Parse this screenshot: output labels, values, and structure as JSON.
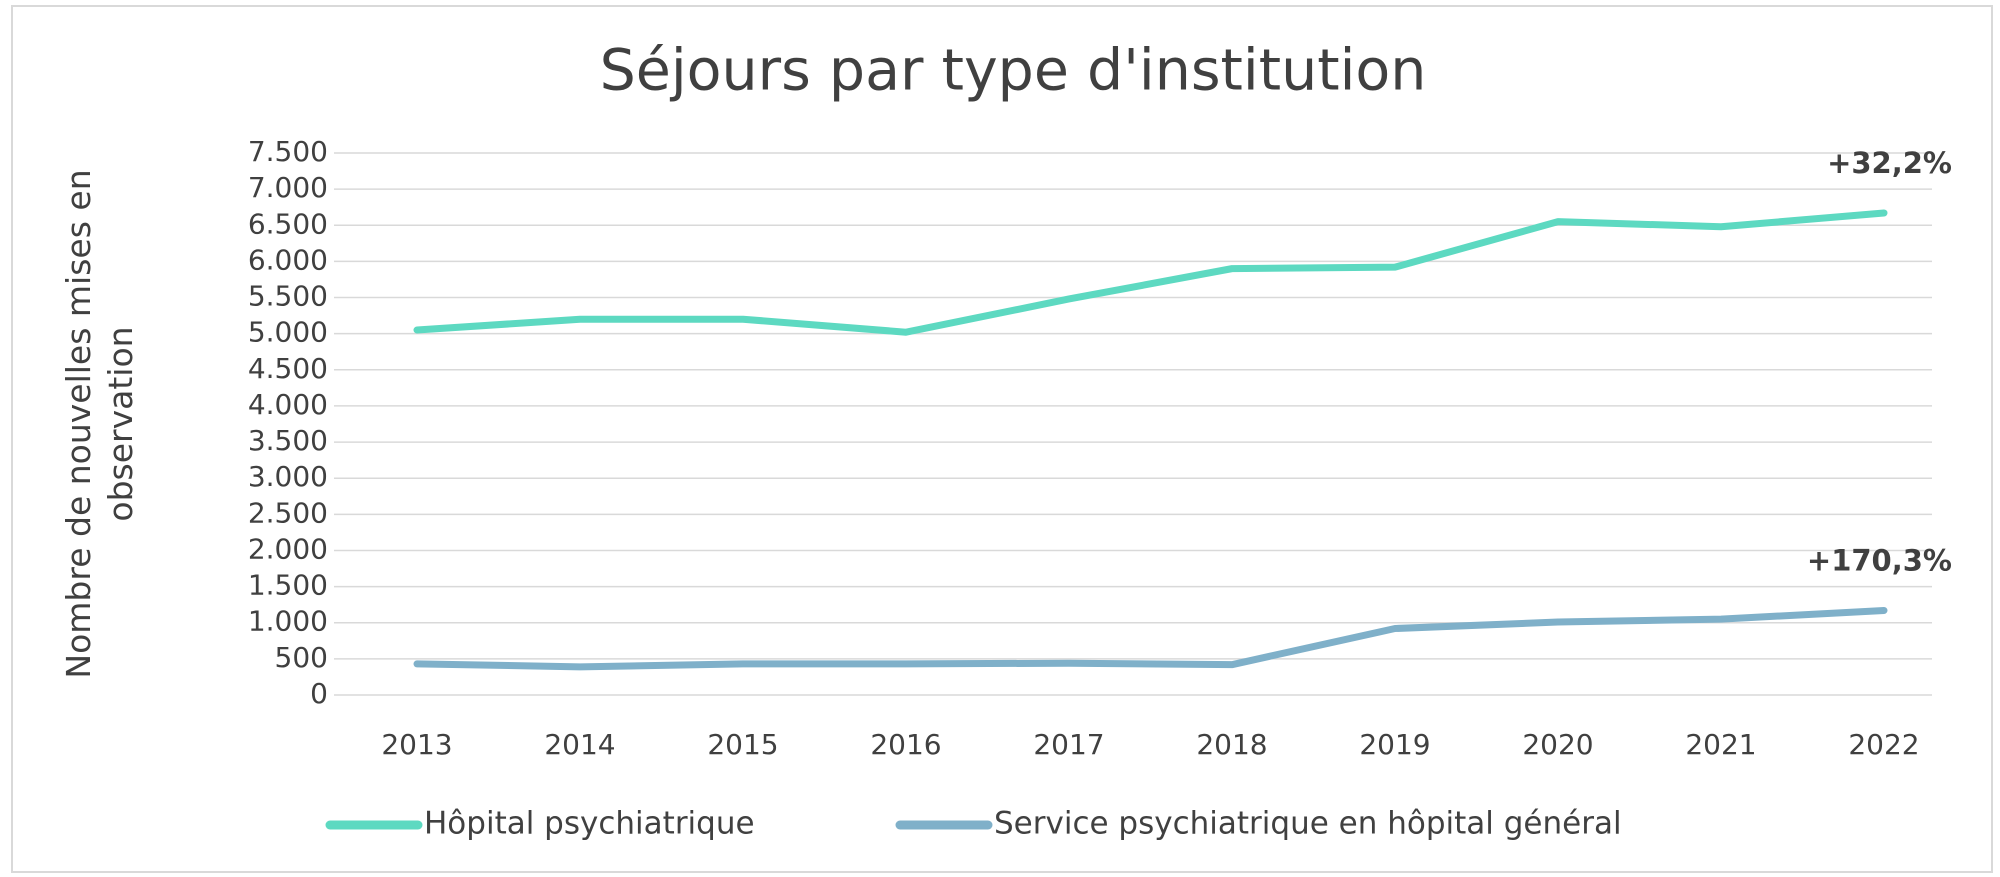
{
  "chart_data": {
    "type": "line",
    "title": "Séjours par type d'institution",
    "y_label": "Nombre de nouvelles mises en observation",
    "categories": [
      "2013",
      "2014",
      "2015",
      "2016",
      "2017",
      "2018",
      "2019",
      "2020",
      "2021",
      "2022"
    ],
    "series": [
      {
        "name": "Hôpital psychiatrique",
        "color": "#5dd9c1",
        "values": [
          5050,
          5200,
          5200,
          5020,
          5480,
          5900,
          5920,
          6550,
          6480,
          6670
        ]
      },
      {
        "name": "Service psychiatrique en hôpital général",
        "color": "#7fb0c9",
        "values": [
          430,
          390,
          430,
          430,
          440,
          420,
          920,
          1010,
          1050,
          1170
        ]
      }
    ],
    "annotations": [
      "+32,2%",
      "+170,3%"
    ],
    "ylim": [
      0,
      7500
    ],
    "yticks": [
      0,
      500,
      {
        "value": 1000,
        "label": "1.000"
      },
      {
        "value": 1500,
        "label": "1.500"
      },
      {
        "value": 2000,
        "label": "2.000"
      },
      {
        "value": 2500,
        "label": "2.500"
      },
      {
        "value": 3000,
        "label": "3.000"
      },
      {
        "value": 3500,
        "label": "3.500"
      },
      {
        "value": 4000,
        "label": "4.000"
      },
      {
        "value": 4500,
        "label": "4.500"
      },
      {
        "value": 5000,
        "label": "5.000"
      },
      {
        "value": 5500,
        "label": "5.500"
      },
      {
        "value": 6000,
        "label": "6.000"
      },
      {
        "value": 6500,
        "label": "6.500"
      },
      {
        "value": 7000,
        "label": "7.000"
      },
      {
        "value": 7500,
        "label": "7.500"
      }
    ],
    "grid": true,
    "legend": "bottom"
  }
}
